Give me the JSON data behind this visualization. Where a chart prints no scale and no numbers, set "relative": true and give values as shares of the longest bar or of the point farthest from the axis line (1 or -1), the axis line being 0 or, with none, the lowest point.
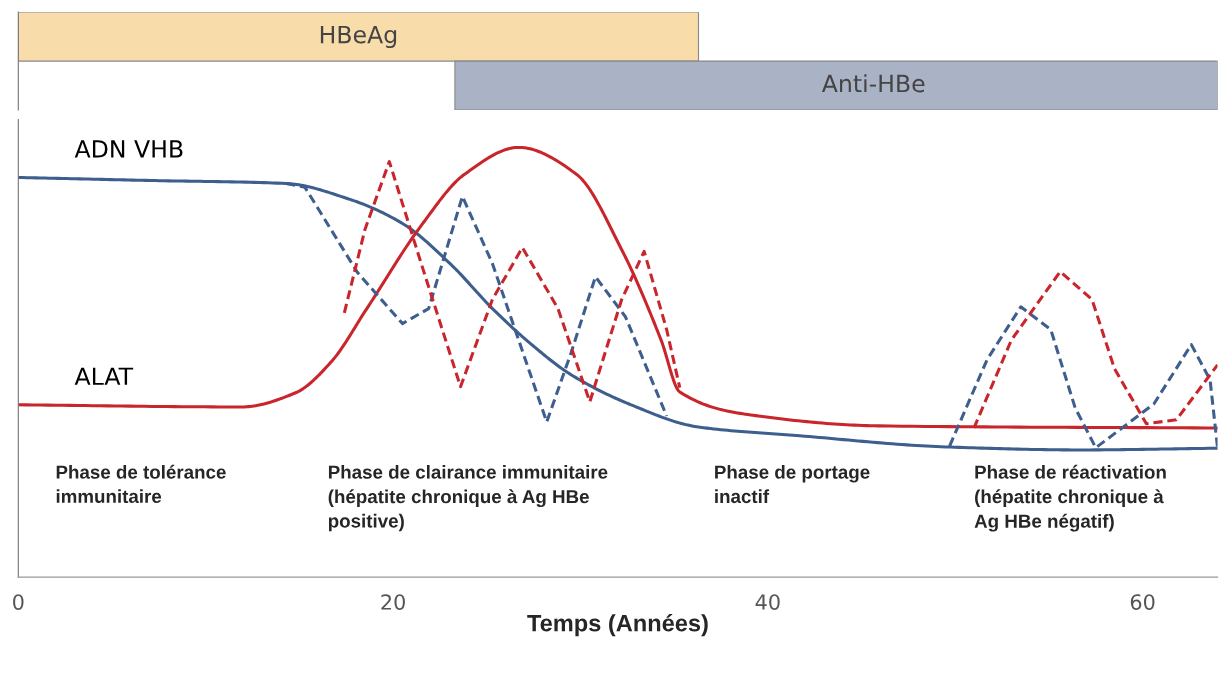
{
  "chart_data": [
    {
      "type": "bar",
      "orientation": "horizontal",
      "categories": [
        "HBeAg",
        "Anti-HBe"
      ],
      "base": [
        0,
        23.3
      ],
      "values": [
        36.3,
        40.7
      ],
      "colors": [
        "#f8dcaa",
        "#aab3c6"
      ],
      "xlim": [
        0,
        64
      ],
      "tick_labels": false
    },
    {
      "type": "line",
      "relative": true,
      "xlabel": "Temps (Années)",
      "xlim": [
        0,
        64
      ],
      "xticks": [
        0,
        20,
        40,
        60
      ],
      "series": [
        {
          "name": "ADN VHB",
          "color": "#3e5e8e",
          "line_style": "solid",
          "x": [
            0,
            7.05,
            14.3,
            17.7,
            20.5,
            23.1,
            25.3,
            27.4,
            29.5,
            32.7,
            36.2,
            41.7,
            49.5,
            56.7,
            64.0
          ],
          "values": [
            0.93,
            0.923,
            0.916,
            0.879,
            0.823,
            0.727,
            0.625,
            0.541,
            0.471,
            0.401,
            0.35,
            0.329,
            0.303,
            0.296,
            0.3
          ]
        },
        {
          "name": "ALAT",
          "color": "#c8262c",
          "line_style": "solid",
          "x": [
            0,
            11.9,
            14.8,
            16.7,
            18.6,
            21.5,
            23.8,
            26.7,
            29.8,
            32.2,
            34.3,
            35.3,
            39.5,
            45.9,
            64.0
          ],
          "values": [
            0.401,
            0.396,
            0.429,
            0.501,
            0.625,
            0.818,
            0.937,
            1.0,
            0.937,
            0.762,
            0.552,
            0.431,
            0.375,
            0.352,
            0.347
          ]
        },
        {
          "color": "#3e5e8e",
          "line_style": "dashed",
          "x": [
            14.3,
            15.3,
            18.1,
            20.5,
            21.9,
            23.7,
            25.3,
            28.2,
            29.5,
            30.8,
            32.4,
            34.6,
            40,
            49.7,
            51.7,
            53.5,
            55.1,
            56.4,
            57.5,
            60.6,
            62.6,
            63.6,
            64.0
          ],
          "values": [
            0.916,
            0.907,
            0.709,
            0.59,
            0.625,
            0.886,
            0.73,
            0.361,
            0.522,
            0.699,
            0.606,
            0.375,
            null,
            0.305,
            0.506,
            0.629,
            0.576,
            0.394,
            0.301,
            0.403,
            0.541,
            0.459,
            0.301
          ]
        },
        {
          "color": "#c8262c",
          "line_style": "dashed",
          "x": [
            17.4,
            18.5,
            19.8,
            21.5,
            23.6,
            25.3,
            26.9,
            28.8,
            30.5,
            32.2,
            33.4,
            34.6,
            35.3,
            40,
            51.0,
            53.0,
            55.6,
            57.3,
            58.5,
            60.2,
            61.8,
            64.0
          ],
          "values": [
            0.615,
            0.809,
            0.967,
            0.73,
            0.443,
            0.646,
            0.767,
            0.625,
            0.408,
            0.646,
            0.758,
            0.576,
            0.441,
            null,
            0.347,
            0.552,
            0.711,
            0.646,
            0.485,
            0.357,
            0.366,
            0.494
          ]
        }
      ],
      "annotations": [
        "Phase de tolérance\nimmunitaire",
        "Phase de clairance immunitaire\n(hépatite chronique à Ag HBe\npositive)",
        "Phase de portage\ninactif",
        "Phase de réactivation\n(hépatite chronique à\nAg HBe négatif)"
      ],
      "marker": "none",
      "grid": false,
      "legend": false
    }
  ]
}
